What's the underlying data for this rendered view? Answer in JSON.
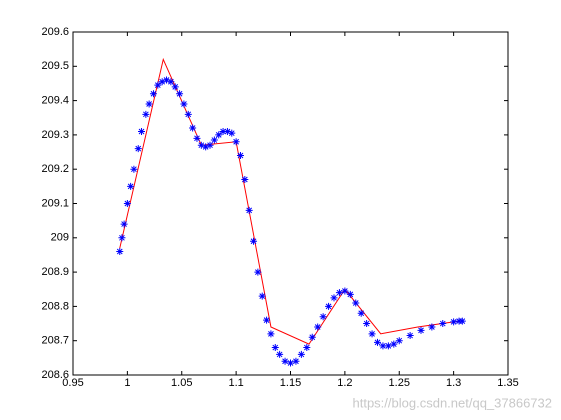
{
  "chart_data": {
    "type": "line",
    "xlim": [
      0.95,
      1.35
    ],
    "xticks": [
      0.95,
      1,
      1.05,
      1.1,
      1.15,
      1.2,
      1.25,
      1.3,
      1.35
    ],
    "ylim": [
      208.6,
      209.6
    ],
    "yticks": [
      208.6,
      208.7,
      208.8,
      208.9,
      209,
      209.1,
      209.2,
      209.3,
      209.4,
      209.5,
      209.6
    ],
    "watermark": "https://blog.csdn.net/qq_37866732",
    "series": [
      {
        "color": "#ff0000",
        "style": "line",
        "x": [
          0.993,
          1.033,
          1.068,
          1.1,
          1.132,
          1.167,
          1.2,
          1.233,
          1.267,
          1.3,
          1.307
        ],
        "values": [
          208.97,
          209.52,
          209.27,
          209.28,
          208.74,
          208.69,
          208.85,
          208.72,
          208.74,
          208.755,
          208.757
        ]
      },
      {
        "color": "#0000ff",
        "style": "marker",
        "x": [
          0.993,
          0.995,
          0.997,
          1.0,
          1.003,
          1.006,
          1.01,
          1.013,
          1.017,
          1.02,
          1.024,
          1.028,
          1.032,
          1.036,
          1.04,
          1.044,
          1.048,
          1.052,
          1.056,
          1.06,
          1.064,
          1.068,
          1.072,
          1.076,
          1.08,
          1.084,
          1.088,
          1.092,
          1.096,
          1.1,
          1.104,
          1.108,
          1.112,
          1.116,
          1.12,
          1.124,
          1.128,
          1.132,
          1.136,
          1.14,
          1.145,
          1.15,
          1.155,
          1.16,
          1.165,
          1.17,
          1.175,
          1.18,
          1.185,
          1.19,
          1.195,
          1.2,
          1.205,
          1.21,
          1.215,
          1.22,
          1.225,
          1.23,
          1.235,
          1.24,
          1.245,
          1.25,
          1.26,
          1.27,
          1.28,
          1.29,
          1.3,
          1.305,
          1.308
        ],
        "values": [
          208.96,
          209.0,
          209.04,
          209.1,
          209.15,
          209.2,
          209.26,
          209.31,
          209.36,
          209.39,
          209.42,
          209.445,
          209.455,
          209.46,
          209.455,
          209.44,
          209.42,
          209.39,
          209.36,
          209.32,
          209.29,
          209.27,
          209.265,
          209.27,
          209.285,
          209.3,
          209.31,
          209.31,
          209.305,
          209.28,
          209.24,
          209.17,
          209.08,
          208.99,
          208.9,
          208.83,
          208.76,
          208.72,
          208.68,
          208.66,
          208.64,
          208.635,
          208.64,
          208.66,
          208.68,
          208.71,
          208.74,
          208.77,
          208.8,
          208.825,
          208.84,
          208.845,
          208.835,
          208.81,
          208.78,
          208.75,
          208.72,
          208.695,
          208.685,
          208.685,
          208.69,
          208.7,
          208.715,
          208.73,
          208.74,
          208.75,
          208.755,
          208.757,
          208.757
        ]
      }
    ]
  }
}
